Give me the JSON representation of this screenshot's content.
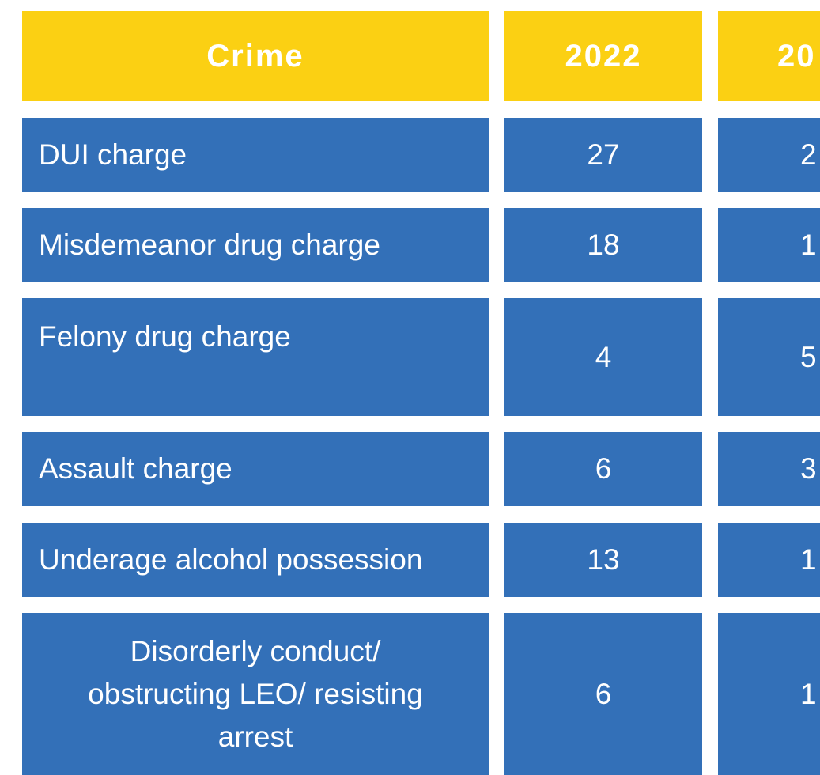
{
  "table": {
    "header": [
      "Crime",
      "2022",
      "20"
    ],
    "rows": [
      [
        "DUI charge",
        "27",
        "2"
      ],
      [
        "Misdemeanor drug charge",
        "18",
        "1"
      ],
      [
        "Felony drug charge",
        "4",
        "5"
      ],
      [
        "Assault charge",
        "6",
        "3"
      ],
      [
        "Underage alcohol possession",
        "13",
        "1"
      ],
      [
        "Disorderly conduct/ obstructing LEO/ resisting arrest",
        "6",
        "1"
      ]
    ]
  }
}
